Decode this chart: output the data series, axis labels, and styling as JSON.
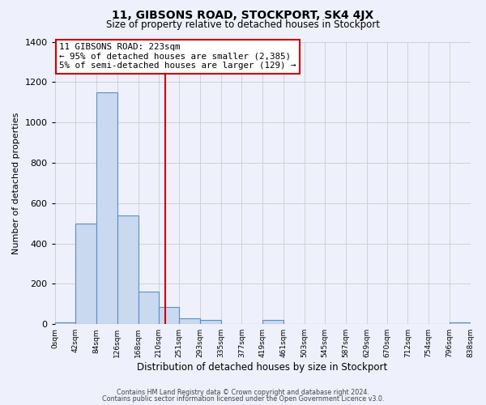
{
  "title": "11, GIBSONS ROAD, STOCKPORT, SK4 4JX",
  "subtitle": "Size of property relative to detached houses in Stockport",
  "xlabel": "Distribution of detached houses by size in Stockport",
  "ylabel": "Number of detached properties",
  "footer_line1": "Contains HM Land Registry data © Crown copyright and database right 2024.",
  "footer_line2": "Contains public sector information licensed under the Open Government Licence v3.0.",
  "bar_edges": [
    0,
    42,
    84,
    126,
    168,
    210,
    251,
    293,
    335,
    377,
    419,
    461,
    503,
    545,
    587,
    629,
    670,
    712,
    754,
    796,
    838
  ],
  "bar_heights": [
    10,
    500,
    1150,
    540,
    160,
    85,
    30,
    20,
    0,
    0,
    20,
    0,
    0,
    0,
    0,
    0,
    0,
    0,
    0,
    10
  ],
  "tick_labels": [
    "0sqm",
    "42sqm",
    "84sqm",
    "126sqm",
    "168sqm",
    "210sqm",
    "251sqm",
    "293sqm",
    "335sqm",
    "377sqm",
    "419sqm",
    "461sqm",
    "503sqm",
    "545sqm",
    "587sqm",
    "629sqm",
    "670sqm",
    "712sqm",
    "754sqm",
    "796sqm",
    "838sqm"
  ],
  "property_line_x": 223,
  "property_line_color": "#cc0000",
  "bar_fill_color": "#c9d9f0",
  "bar_edge_color": "#5b8ec4",
  "background_color": "#eef1fb",
  "annotation_line1": "11 GIBSONS ROAD: 223sqm",
  "annotation_line2": "← 95% of detached houses are smaller (2,385)",
  "annotation_line3": "5% of semi-detached houses are larger (129) →",
  "annotation_box_color": "#ffffff",
  "annotation_box_edge_color": "#cc0000",
  "ylim": [
    0,
    1400
  ],
  "yticks": [
    0,
    200,
    400,
    600,
    800,
    1000,
    1200,
    1400
  ]
}
